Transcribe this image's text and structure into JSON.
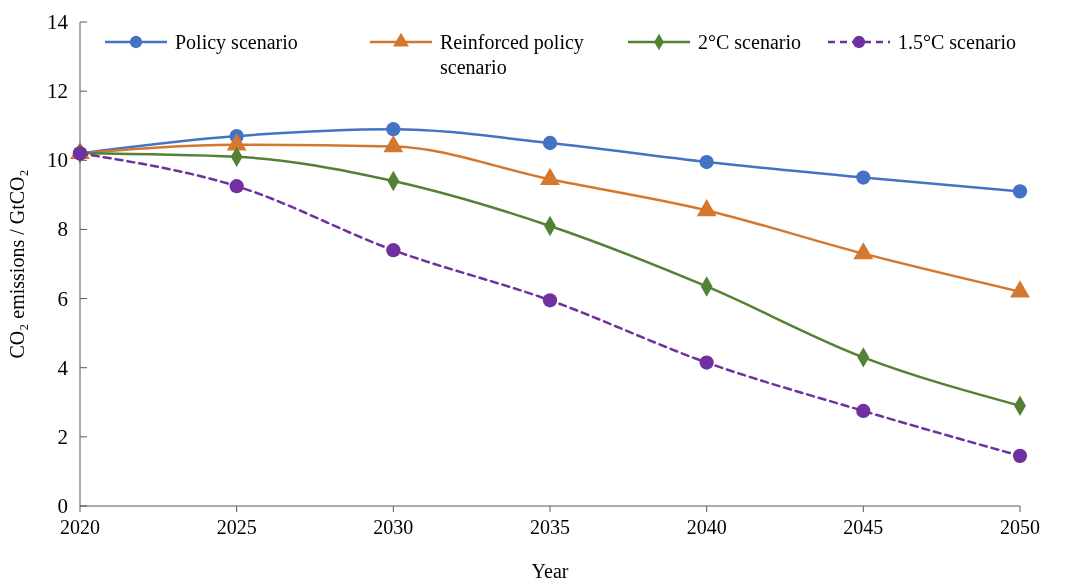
{
  "chart_data": {
    "type": "line",
    "xlabel": "Year",
    "ylabel": "CO₂ emissions / GtCO₂",
    "x": [
      2020,
      2025,
      2030,
      2035,
      2040,
      2045,
      2050
    ],
    "xlim": [
      2020,
      2050
    ],
    "xticks": [
      2020,
      2025,
      2030,
      2035,
      2040,
      2045,
      2050
    ],
    "ylim": [
      0,
      14
    ],
    "yticks": [
      0,
      2,
      4,
      6,
      8,
      10,
      12,
      14
    ],
    "grid": false,
    "legend": "top",
    "series": [
      {
        "name": "Policy scenario",
        "color": "#4472c4",
        "marker": "circle",
        "line_style": "solid",
        "values": [
          10.2,
          10.7,
          10.9,
          10.5,
          9.95,
          9.5,
          9.1
        ]
      },
      {
        "name": "Reinforced policy scenario",
        "color": "#d4782f",
        "marker": "triangle",
        "line_style": "solid",
        "values": [
          10.2,
          10.45,
          10.4,
          9.45,
          8.55,
          7.3,
          6.2
        ]
      },
      {
        "name": "2°C scenario",
        "color": "#548235",
        "marker": "diamond",
        "line_style": "solid",
        "values": [
          10.2,
          10.1,
          9.4,
          8.1,
          6.35,
          4.3,
          2.9
        ]
      },
      {
        "name": "1.5°C scenario",
        "color": "#7030a0",
        "marker": "circle",
        "line_style": "dashed",
        "values": [
          10.2,
          9.25,
          7.4,
          5.95,
          4.15,
          2.75,
          1.45
        ]
      }
    ]
  }
}
